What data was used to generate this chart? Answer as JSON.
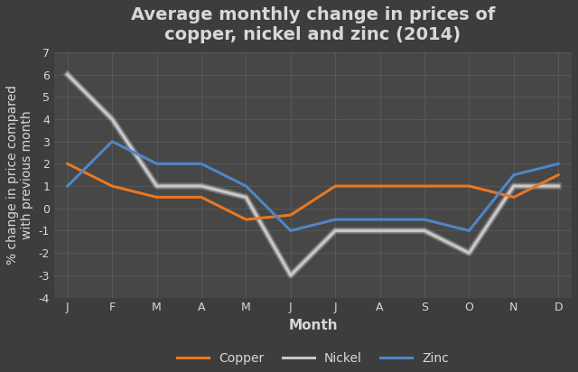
{
  "title": "Average monthly change in prices of\ncopper, nickel and zinc (2014)",
  "xlabel": "Month",
  "ylabel": "% change in price compared\nwith previous month",
  "months": [
    "J",
    "F",
    "M",
    "A",
    "M",
    "J",
    "J",
    "A",
    "S",
    "O",
    "N",
    "D"
  ],
  "copper": [
    2.0,
    1.0,
    0.5,
    0.5,
    -0.5,
    -0.3,
    1.0,
    1.0,
    1.0,
    1.0,
    0.5,
    1.5
  ],
  "nickel": [
    6.0,
    4.0,
    1.0,
    1.0,
    0.5,
    -3.0,
    -1.0,
    -1.0,
    -1.0,
    -2.0,
    1.0,
    1.0
  ],
  "zinc": [
    1.0,
    3.0,
    2.0,
    2.0,
    1.0,
    -1.0,
    -0.5,
    -0.5,
    -0.5,
    -1.0,
    1.5,
    2.0
  ],
  "copper_color": "#E87722",
  "nickel_color": "#C8C8C8",
  "zinc_color": "#4F86C6",
  "background_color": "#3d3d3d",
  "plot_bg_color": "#474747",
  "text_color": "#D8D8D8",
  "grid_color": "#5a5a5a",
  "ylim": [
    -4,
    7
  ],
  "yticks": [
    -4,
    -3,
    -2,
    -1,
    0,
    1,
    2,
    3,
    4,
    5,
    6,
    7
  ],
  "title_fontsize": 14,
  "axis_label_fontsize": 11,
  "tick_fontsize": 9,
  "legend_fontsize": 10,
  "line_width": 2.2
}
